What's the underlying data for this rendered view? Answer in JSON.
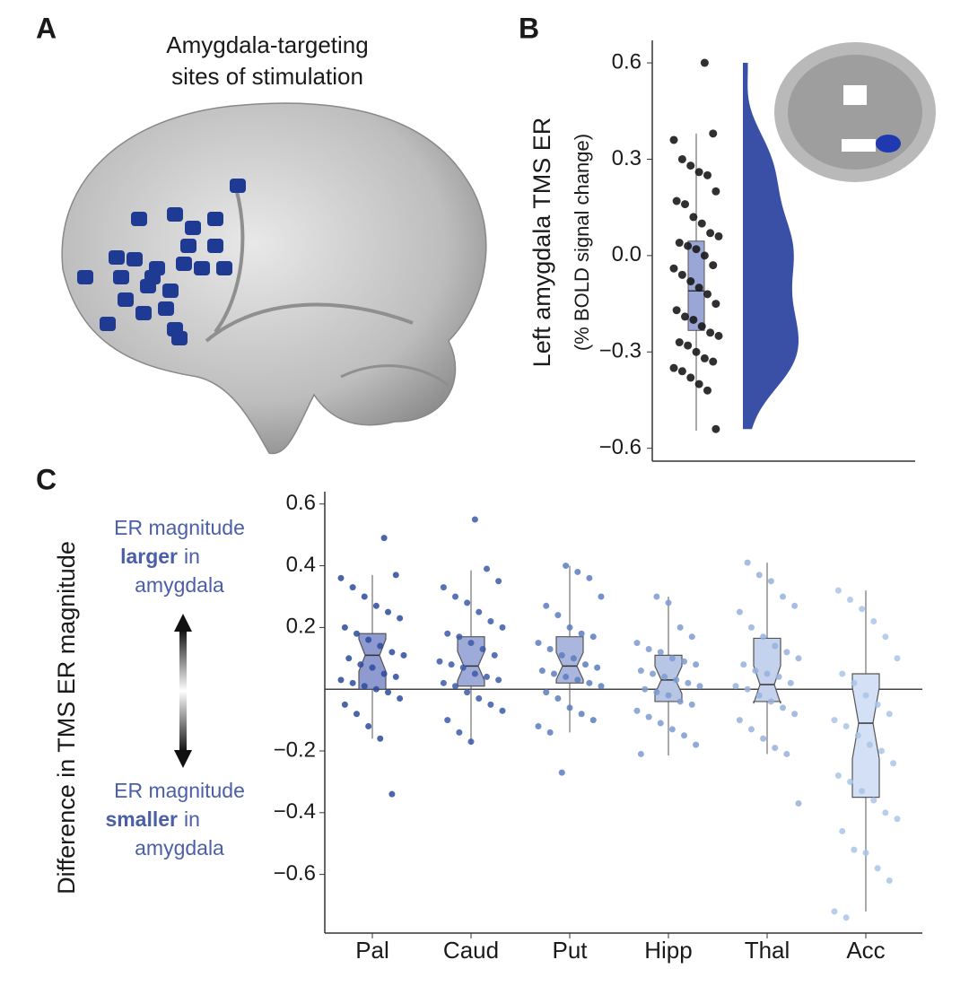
{
  "panel_labels": [
    "A",
    "B",
    "C"
  ],
  "panel_a": {
    "title_lines": [
      "Amygdala-targeting",
      "sites of stimulation"
    ]
  },
  "chart_data": [
    {
      "type": "raincloud",
      "ylabel": "Left amygdala TMS ER",
      "ylabel_sub": "(% BOLD signal change)",
      "ylim": [
        -0.64,
        0.67
      ],
      "yticks": [
        {
          "value": -0.6,
          "label": "−0.6"
        },
        {
          "value": -0.3,
          "label": "−0.3"
        },
        {
          "value": 0,
          "label": "0.0"
        },
        0.3,
        0.6
      ],
      "values": [
        0.6,
        0.38,
        0.36,
        0.3,
        0.28,
        0.26,
        0.25,
        0.2,
        0.17,
        0.16,
        0.12,
        0.1,
        0.07,
        0.06,
        0.04,
        0.03,
        0.02,
        0.0,
        -0.03,
        -0.04,
        -0.06,
        -0.08,
        -0.1,
        -0.12,
        -0.15,
        -0.17,
        -0.19,
        -0.2,
        -0.22,
        -0.24,
        -0.25,
        -0.27,
        -0.28,
        -0.3,
        -0.32,
        -0.33,
        -0.35,
        -0.36,
        -0.38,
        -0.4,
        -0.42,
        -0.54
      ],
      "box": {
        "whisker_low": -0.545,
        "q1": -0.233,
        "median": -0.11,
        "q3": 0.045,
        "whisker_high": 0.38
      },
      "point_color": "#1a1a1a",
      "box_color": "#9aa6d6",
      "density_color": "#3a4fa6"
    },
    {
      "type": "box",
      "ylabel": "Difference in TMS ER magnitude",
      "ylim": [
        -0.79,
        0.64
      ],
      "yticks": [
        {
          "value": -0.6,
          "label": "−0.6"
        },
        {
          "value": -0.4,
          "label": "−0.4"
        },
        {
          "value": -0.2,
          "label": "−0.2"
        },
        0.2,
        0.4,
        0.6
      ],
      "hline": 0,
      "categories": [
        "Pal",
        "Caud",
        "Put",
        "Hipp",
        "Thal",
        "Acc"
      ],
      "colors": [
        "#2c4a9c",
        "#3a5aa8",
        "#5a7cc0",
        "#7d9ad0",
        "#96b1dc",
        "#a9c4e8"
      ],
      "box_colors": [
        "#8e9ad0",
        "#9eaad8",
        "#aab6de",
        "#b8c6e6",
        "#c4d2ee",
        "#d3e0f5"
      ],
      "boxes": [
        {
          "whisker_low": -0.16,
          "q1": 0.0,
          "median": 0.11,
          "q3": 0.18,
          "whisker_high": 0.37
        },
        {
          "whisker_low": -0.18,
          "q1": 0.01,
          "median": 0.075,
          "q3": 0.17,
          "whisker_high": 0.385
        },
        {
          "whisker_low": -0.14,
          "q1": 0.02,
          "median": 0.075,
          "q3": 0.17,
          "whisker_high": 0.4
        },
        {
          "whisker_low": -0.215,
          "q1": -0.04,
          "median": 0.03,
          "q3": 0.11,
          "whisker_high": 0.3
        },
        {
          "whisker_low": -0.21,
          "q1": -0.04,
          "median": 0.015,
          "q3": 0.165,
          "whisker_high": 0.41
        },
        {
          "whisker_low": -0.72,
          "q1": -0.35,
          "median": -0.11,
          "q3": 0.05,
          "whisker_high": 0.32
        }
      ],
      "points": [
        [
          0.49,
          0.37,
          0.36,
          0.33,
          0.3,
          0.27,
          0.25,
          0.23,
          0.2,
          0.18,
          0.16,
          0.14,
          0.12,
          0.11,
          0.1,
          0.08,
          0.07,
          0.05,
          0.04,
          0.03,
          0.02,
          0.01,
          0,
          -0.01,
          -0.03,
          -0.05,
          -0.08,
          -0.12,
          -0.16,
          -0.34
        ],
        [
          0.55,
          0.39,
          0.35,
          0.33,
          0.3,
          0.28,
          0.25,
          0.22,
          0.2,
          0.18,
          0.17,
          0.15,
          0.13,
          0.11,
          0.09,
          0.08,
          0.07,
          0.05,
          0.04,
          0.03,
          0.02,
          0.01,
          -0.01,
          -0.03,
          -0.05,
          -0.07,
          -0.1,
          -0.14,
          -0.17
        ],
        [
          0.4,
          0.38,
          0.36,
          0.3,
          0.27,
          0.24,
          0.2,
          0.18,
          0.17,
          0.15,
          0.13,
          0.11,
          0.1,
          0.08,
          0.07,
          0.06,
          0.05,
          0.04,
          0.03,
          0.02,
          0.01,
          -0.01,
          -0.03,
          -0.06,
          -0.08,
          -0.1,
          -0.12,
          -0.14,
          -0.27
        ],
        [
          0.3,
          0.28,
          0.2,
          0.17,
          0.15,
          0.13,
          0.12,
          0.1,
          0.09,
          0.08,
          0.06,
          0.05,
          0.04,
          0.03,
          0.02,
          0.01,
          0,
          -0.01,
          -0.02,
          -0.04,
          -0.05,
          -0.07,
          -0.09,
          -0.11,
          -0.13,
          -0.15,
          -0.18,
          -0.21
        ],
        [
          0.41,
          0.37,
          0.35,
          0.3,
          0.27,
          0.25,
          0.2,
          0.17,
          0.14,
          0.12,
          0.1,
          0.08,
          0.06,
          0.05,
          0.04,
          0.02,
          0.01,
          0,
          -0.02,
          -0.04,
          -0.06,
          -0.08,
          -0.1,
          -0.13,
          -0.16,
          -0.19,
          -0.21,
          -0.37
        ],
        [
          0.32,
          0.29,
          0.26,
          0.22,
          0.17,
          0.1,
          0.05,
          0.02,
          -0.02,
          -0.05,
          -0.08,
          -0.1,
          -0.12,
          -0.15,
          -0.18,
          -0.2,
          -0.24,
          -0.28,
          -0.3,
          -0.33,
          -0.36,
          -0.4,
          -0.42,
          -0.46,
          -0.52,
          -0.53,
          -0.58,
          -0.62,
          -0.72,
          -0.74
        ]
      ],
      "notes": {
        "upper": {
          "line1": "ER magnitude",
          "bold": "larger",
          "after": "in",
          "line3": "amygdala"
        },
        "lower": {
          "line1": "ER magnitude",
          "bold": "smaller",
          "after": "in",
          "line3": "amygdala"
        },
        "color": "#4a5fa8"
      }
    }
  ]
}
